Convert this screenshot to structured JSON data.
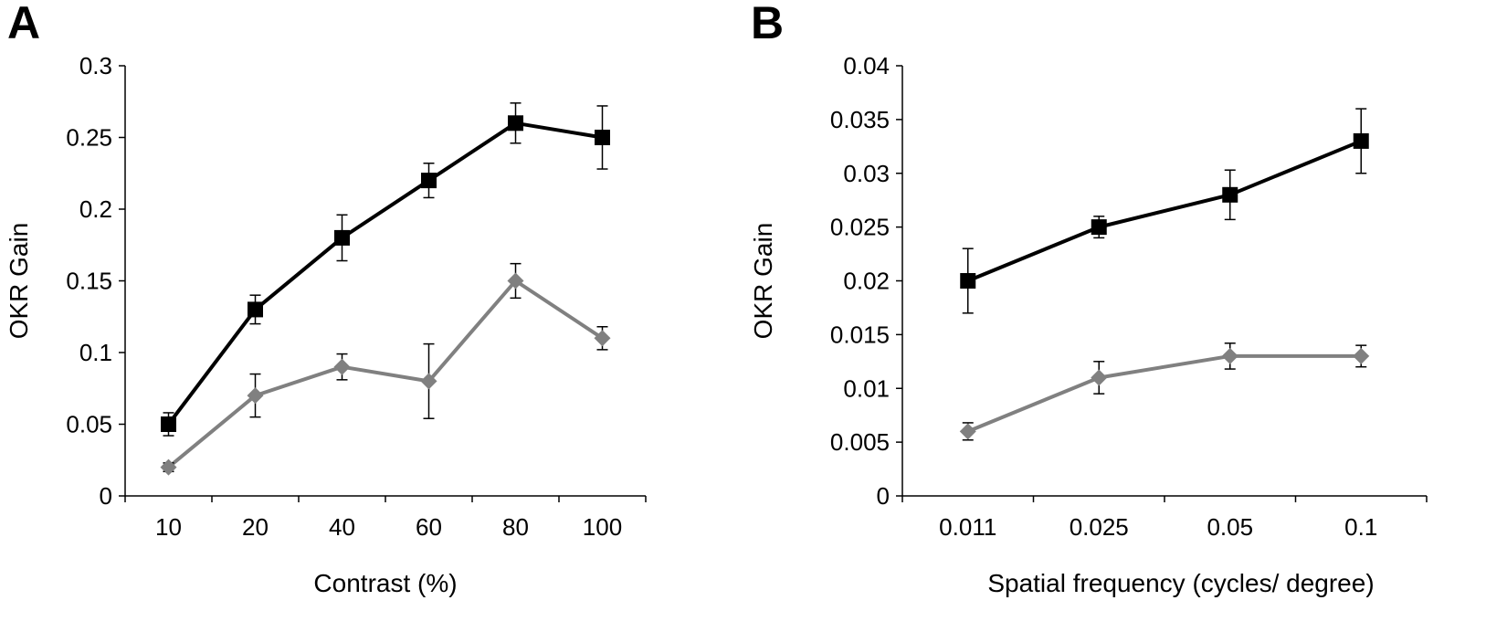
{
  "chart_data": [
    {
      "type": "line",
      "panel_label": "A",
      "xlabel": "Contrast (%)",
      "ylabel": "OKR Gain",
      "categories": [
        "10",
        "20",
        "40",
        "60",
        "80",
        "100"
      ],
      "ylim": [
        0,
        0.3
      ],
      "yticks": [
        "0",
        "0.05",
        "0.1",
        "0.15",
        "0.2",
        "0.25",
        "0.3"
      ],
      "grid": false,
      "series": [
        {
          "marker": "square",
          "color": "#000000",
          "values": [
            0.05,
            0.13,
            0.18,
            0.22,
            0.26,
            0.25
          ],
          "errors": [
            0.008,
            0.01,
            0.016,
            0.012,
            0.014,
            0.022
          ]
        },
        {
          "marker": "diamond",
          "color": "#808080",
          "values": [
            0.02,
            0.07,
            0.09,
            0.08,
            0.15,
            0.11
          ],
          "errors": [
            0.003,
            0.015,
            0.009,
            0.026,
            0.012,
            0.008
          ]
        }
      ]
    },
    {
      "type": "line",
      "panel_label": "B",
      "xlabel": "Spatial frequency (cycles/ degree)",
      "ylabel": "OKR Gain",
      "categories": [
        "0.011",
        "0.025",
        "0.05",
        "0.1"
      ],
      "ylim": [
        0,
        0.04
      ],
      "yticks": [
        "0",
        "0.005",
        "0.01",
        "0.015",
        "0.02",
        "0.025",
        "0.03",
        "0.035",
        "0.04"
      ],
      "grid": false,
      "series": [
        {
          "marker": "square",
          "color": "#000000",
          "values": [
            0.02,
            0.025,
            0.028,
            0.033
          ],
          "errors": [
            0.003,
            0.001,
            0.0023,
            0.003
          ]
        },
        {
          "marker": "diamond",
          "color": "#808080",
          "values": [
            0.006,
            0.011,
            0.013,
            0.013
          ],
          "errors": [
            0.0008,
            0.0015,
            0.0012,
            0.001
          ]
        }
      ]
    }
  ]
}
